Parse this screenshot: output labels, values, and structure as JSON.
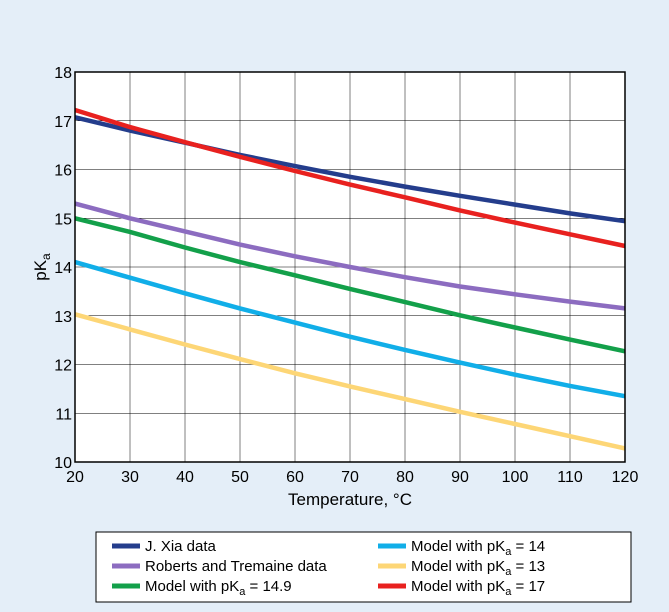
{
  "chart_data": {
    "type": "line",
    "xlabel": "Temperature, °C",
    "ylabel": "pKa",
    "xlim": [
      20,
      120
    ],
    "ylim": [
      10,
      18
    ],
    "xticks": [
      20,
      30,
      40,
      50,
      60,
      70,
      80,
      90,
      100,
      110,
      120
    ],
    "yticks": [
      10,
      11,
      12,
      13,
      14,
      15,
      16,
      17,
      18
    ],
    "grid": true,
    "legend_position": "bottom",
    "series": [
      {
        "name": "J. Xia data",
        "label": "J. Xia data",
        "color": "#243d8c",
        "x": [
          20,
          30,
          40,
          50,
          60,
          70,
          80,
          90,
          100,
          110,
          120
        ],
        "y": [
          17.07,
          16.8,
          16.55,
          16.3,
          16.07,
          15.85,
          15.65,
          15.46,
          15.28,
          15.1,
          14.94
        ]
      },
      {
        "name": "Roberts and Tremaine data",
        "label": "Roberts and Tremaine data",
        "color": "#8c6cc0",
        "x": [
          20,
          30,
          40,
          50,
          60,
          70,
          80,
          90,
          100,
          110,
          120
        ],
        "y": [
          15.3,
          15.0,
          14.73,
          14.46,
          14.22,
          14.0,
          13.79,
          13.6,
          13.44,
          13.29,
          13.15
        ]
      },
      {
        "name": "Model with pKa = 14.9",
        "label_main": "Model with pK",
        "label_sub": "a",
        "label_tail": " = 14.9",
        "color": "#13a04a",
        "x": [
          20,
          30,
          40,
          50,
          60,
          70,
          80,
          90,
          100,
          110,
          120
        ],
        "y": [
          15.0,
          14.72,
          14.4,
          14.1,
          13.83,
          13.55,
          13.28,
          13.01,
          12.76,
          12.51,
          12.27
        ]
      },
      {
        "name": "Model with pKa = 14",
        "label_main": "Model with pK",
        "label_sub": "a",
        "label_tail": " = 14",
        "color": "#11aee8",
        "x": [
          20,
          30,
          40,
          50,
          60,
          70,
          80,
          90,
          100,
          110,
          120
        ],
        "y": [
          14.1,
          13.78,
          13.46,
          13.15,
          12.86,
          12.57,
          12.3,
          12.04,
          11.79,
          11.56,
          11.35
        ]
      },
      {
        "name": "Model with pKa = 13",
        "label_main": "Model with pK",
        "label_sub": "a",
        "label_tail": " = 13",
        "color": "#fdd676",
        "x": [
          20,
          30,
          40,
          50,
          60,
          70,
          80,
          90,
          100,
          110,
          120
        ],
        "y": [
          13.03,
          12.72,
          12.41,
          12.11,
          11.82,
          11.55,
          11.29,
          11.03,
          10.78,
          10.53,
          10.28
        ]
      },
      {
        "name": "Model with pKa = 17",
        "label_main": "Model with pK",
        "label_sub": "a",
        "label_tail": " = 17",
        "color": "#e8211f",
        "x": [
          20,
          30,
          40,
          50,
          60,
          70,
          80,
          90,
          100,
          110,
          120
        ],
        "y": [
          17.22,
          16.87,
          16.56,
          16.26,
          15.97,
          15.69,
          15.43,
          15.16,
          14.91,
          14.67,
          14.43
        ]
      }
    ]
  }
}
